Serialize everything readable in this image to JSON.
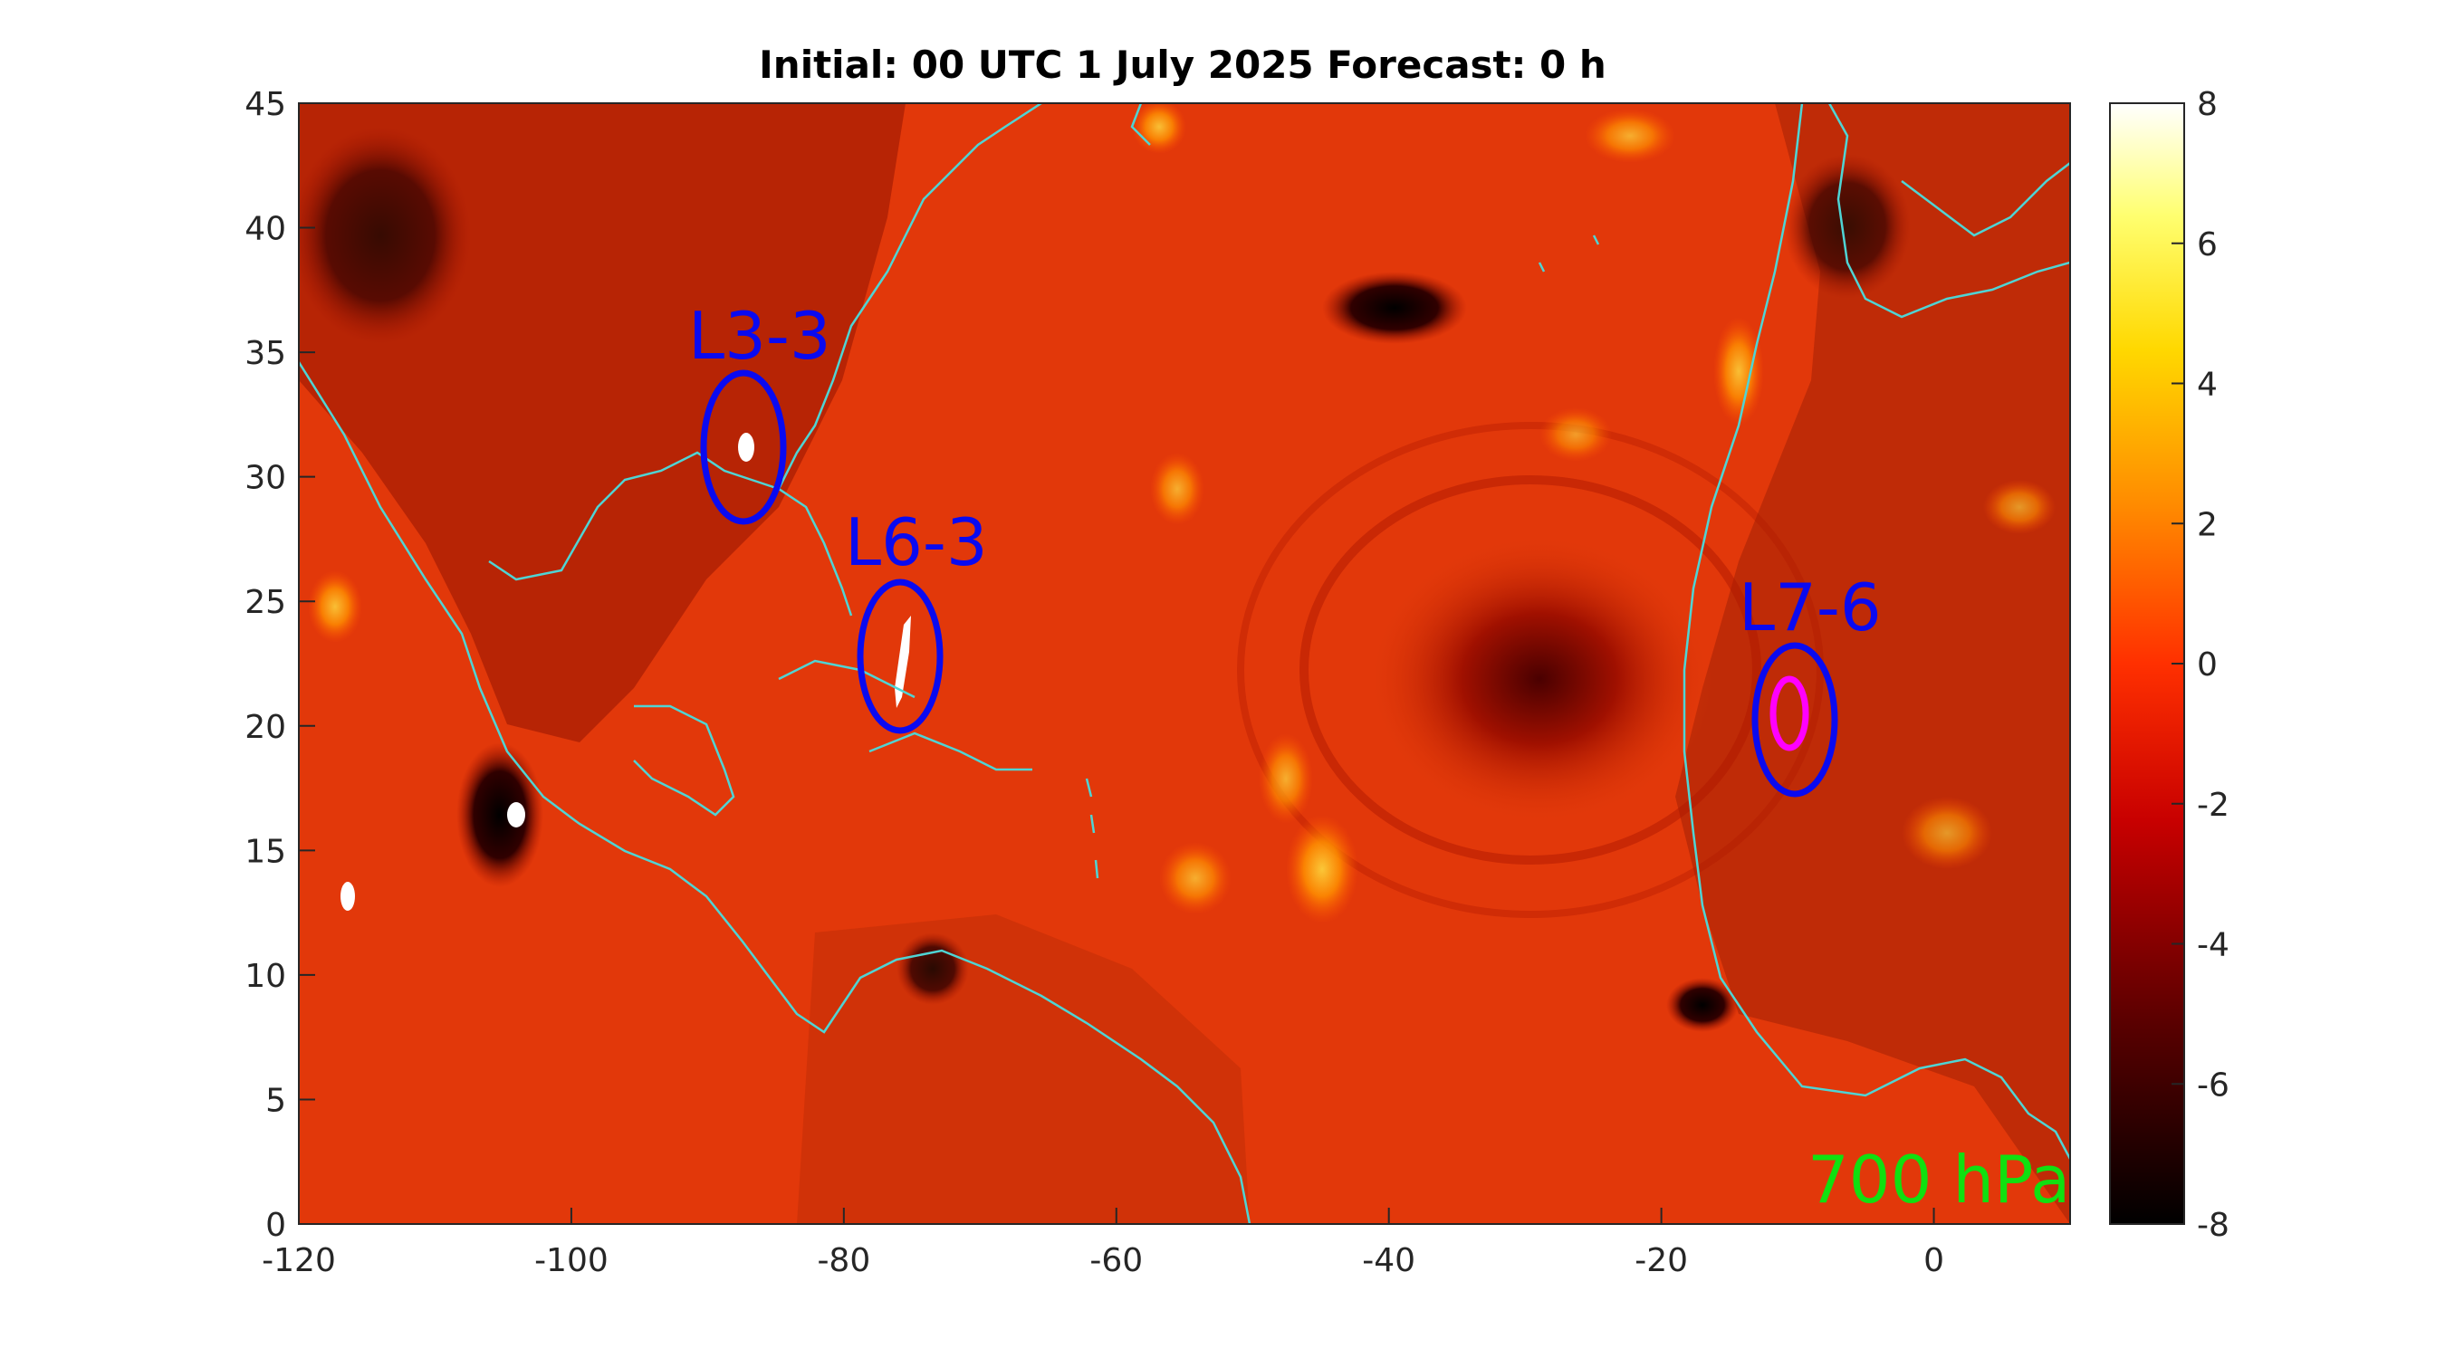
{
  "title": "Initial: 00 UTC 1 July 2025 Forecast: 0 h",
  "map": {
    "x_ticks": [
      "-120",
      "-100",
      "-80",
      "-60",
      "-40",
      "-20",
      "0"
    ],
    "x_tick_values": [
      -120,
      -100,
      -80,
      -60,
      -40,
      -20,
      0
    ],
    "y_ticks": [
      "0",
      "5",
      "10",
      "15",
      "20",
      "25",
      "30",
      "35",
      "40",
      "45"
    ],
    "y_tick_values": [
      0,
      5,
      10,
      15,
      20,
      25,
      30,
      35,
      40,
      45
    ],
    "xlim": [
      -120,
      10
    ],
    "ylim": [
      0,
      45
    ],
    "level_label": "700 hPa",
    "coastline_color": "#4fd4d4",
    "features": [
      {
        "label": "L3-3",
        "lon": -87.5,
        "lat": 31.0,
        "marker_color": "#0a0af0"
      },
      {
        "label": "L6-3",
        "lon": -75.5,
        "lat": 22.7,
        "marker_color": "#0a0af0"
      },
      {
        "label": "L7-6",
        "lon": -9.0,
        "lat": 20.3,
        "marker_color": "#0a0af0",
        "inner_marker_color": "#ff00ff"
      }
    ]
  },
  "colorbar": {
    "ticks": [
      "8",
      "6",
      "4",
      "2",
      "0",
      "-2",
      "-4",
      "-6",
      "-8"
    ],
    "range": [
      -8,
      8
    ],
    "colormap": "hot"
  },
  "colors": {
    "label_blue": "#0a0af0",
    "level_green": "#10e010",
    "field_base": "#e83a0a"
  }
}
